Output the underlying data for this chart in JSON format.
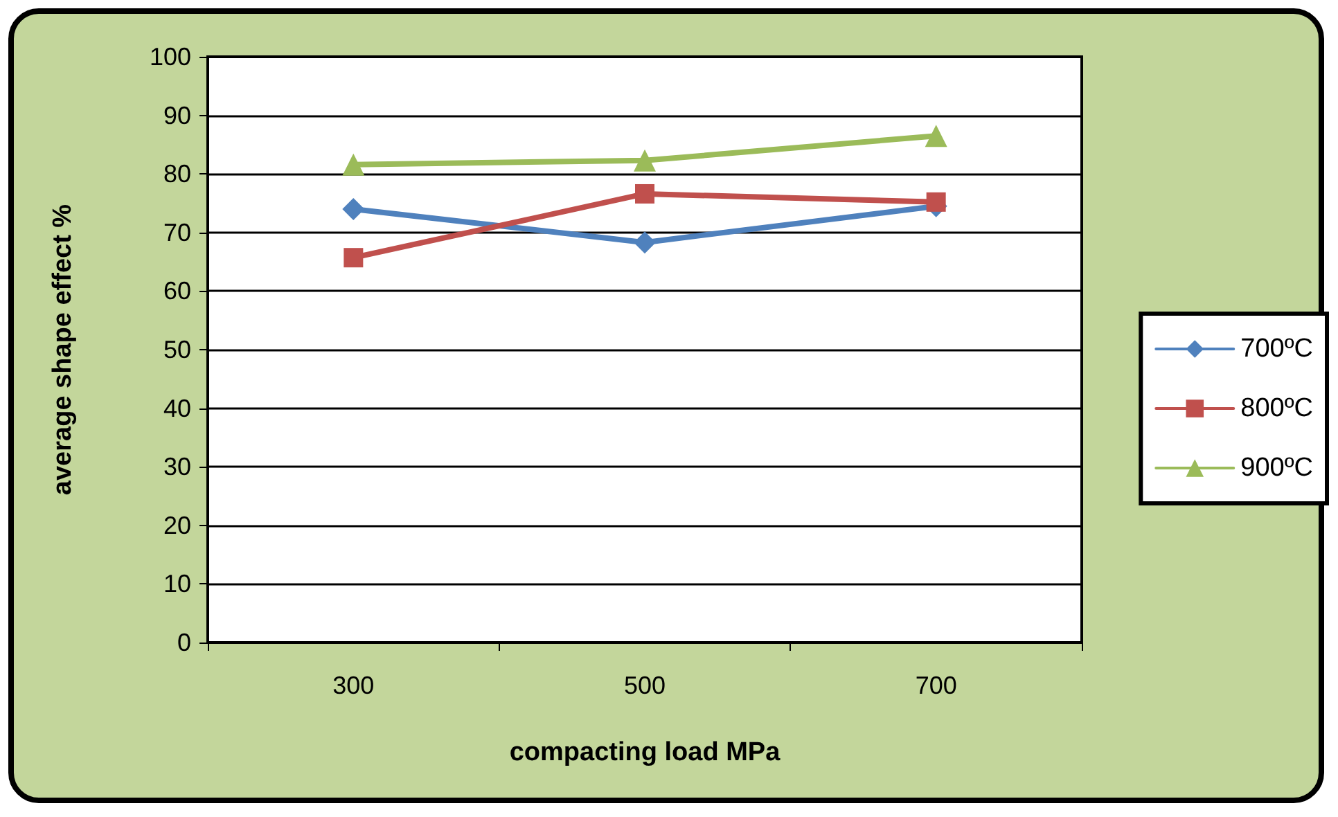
{
  "chart_data": {
    "type": "line",
    "xlabel": "compacting load MPa",
    "ylabel": "average shape effect %",
    "categories": [
      "300",
      "500",
      "700"
    ],
    "ylim": [
      0,
      100
    ],
    "yticks": [
      0,
      10,
      20,
      30,
      40,
      50,
      60,
      70,
      80,
      90,
      100
    ],
    "grid": "y",
    "legend": "right",
    "line_style": "solid",
    "series": [
      {
        "name": "700ºC",
        "color": "#4f81bd",
        "marker": "diamond",
        "values": [
          74.0,
          68.3,
          74.5
        ]
      },
      {
        "name": "800ºC",
        "color": "#c0504d",
        "marker": "square",
        "values": [
          65.7,
          76.6,
          75.2
        ]
      },
      {
        "name": "900ºC",
        "color": "#9bbb59",
        "marker": "triangle",
        "values": [
          81.6,
          82.3,
          86.5
        ]
      }
    ]
  }
}
